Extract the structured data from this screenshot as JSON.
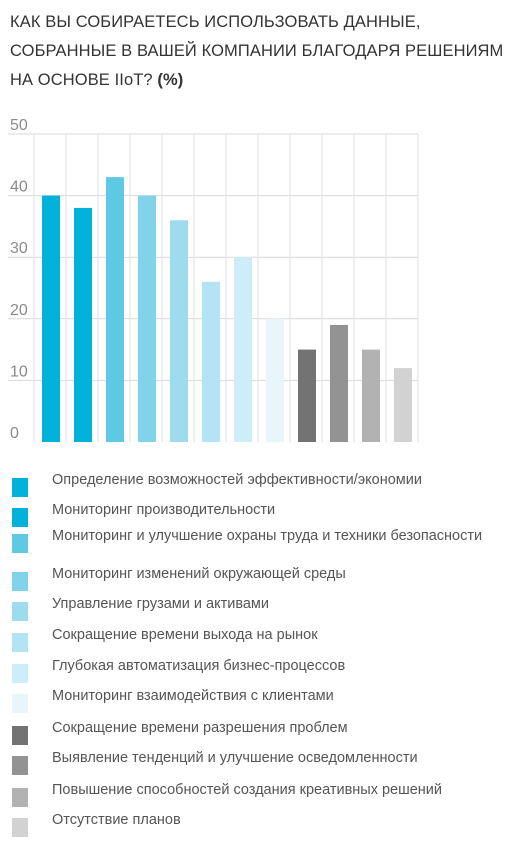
{
  "title": "КАК ВЫ СОБИРАЕТЕСЬ ИСПОЛЬЗОВАТЬ ДАННЫЕ, СОБРАННЫЕ В ВАШЕЙ КОМПАНИИ БЛАГОДАРЯ РЕШЕНИЯМ НА ОСНОВЕ IIoT?",
  "title_suffix": "(%)",
  "chart_data": {
    "type": "bar",
    "title": "КАК ВЫ СОБИРАЕТЕСЬ ИСПОЛЬЗОВАТЬ ДАННЫЕ, СОБРАННЫЕ В ВАШЕЙ КОМПАНИИ БЛАГОДАРЯ РЕШЕНИЯМ НА ОСНОВЕ IIoT? (%)",
    "categories": [
      "Определение возможностей эффективности/экономии",
      "Мониторинг производительности",
      "Мониторинг и улучшение охраны труда и техники безопасности",
      "Мониторинг изменений окружающей среды",
      "Управление грузами и активами",
      "Сокращение времени выхода на рынок",
      "Глубокая автоматизация бизнес-процессов",
      "Мониторинг взаимодействия с клиентами",
      "Сокращение времени разрешения проблем",
      "Выявление тенденций и улучшение осведомленности",
      "Повышение способностей создания креативных решений",
      "Отсутствие планов"
    ],
    "values": [
      40,
      38,
      43,
      40,
      36,
      26,
      30,
      20,
      15,
      19,
      15,
      12
    ],
    "colors": [
      "#00b2d9",
      "#00b2d9",
      "#5ec9e5",
      "#80d3ea",
      "#9ddcef",
      "#b3e4f3",
      "#cdeef8",
      "#e8f6fb",
      "#737373",
      "#939393",
      "#b2b2b2",
      "#d2d2d2"
    ],
    "ylim": [
      0,
      50
    ],
    "yticks": [
      0,
      10,
      20,
      30,
      40,
      50
    ],
    "grid": true,
    "legend": "bottom"
  }
}
